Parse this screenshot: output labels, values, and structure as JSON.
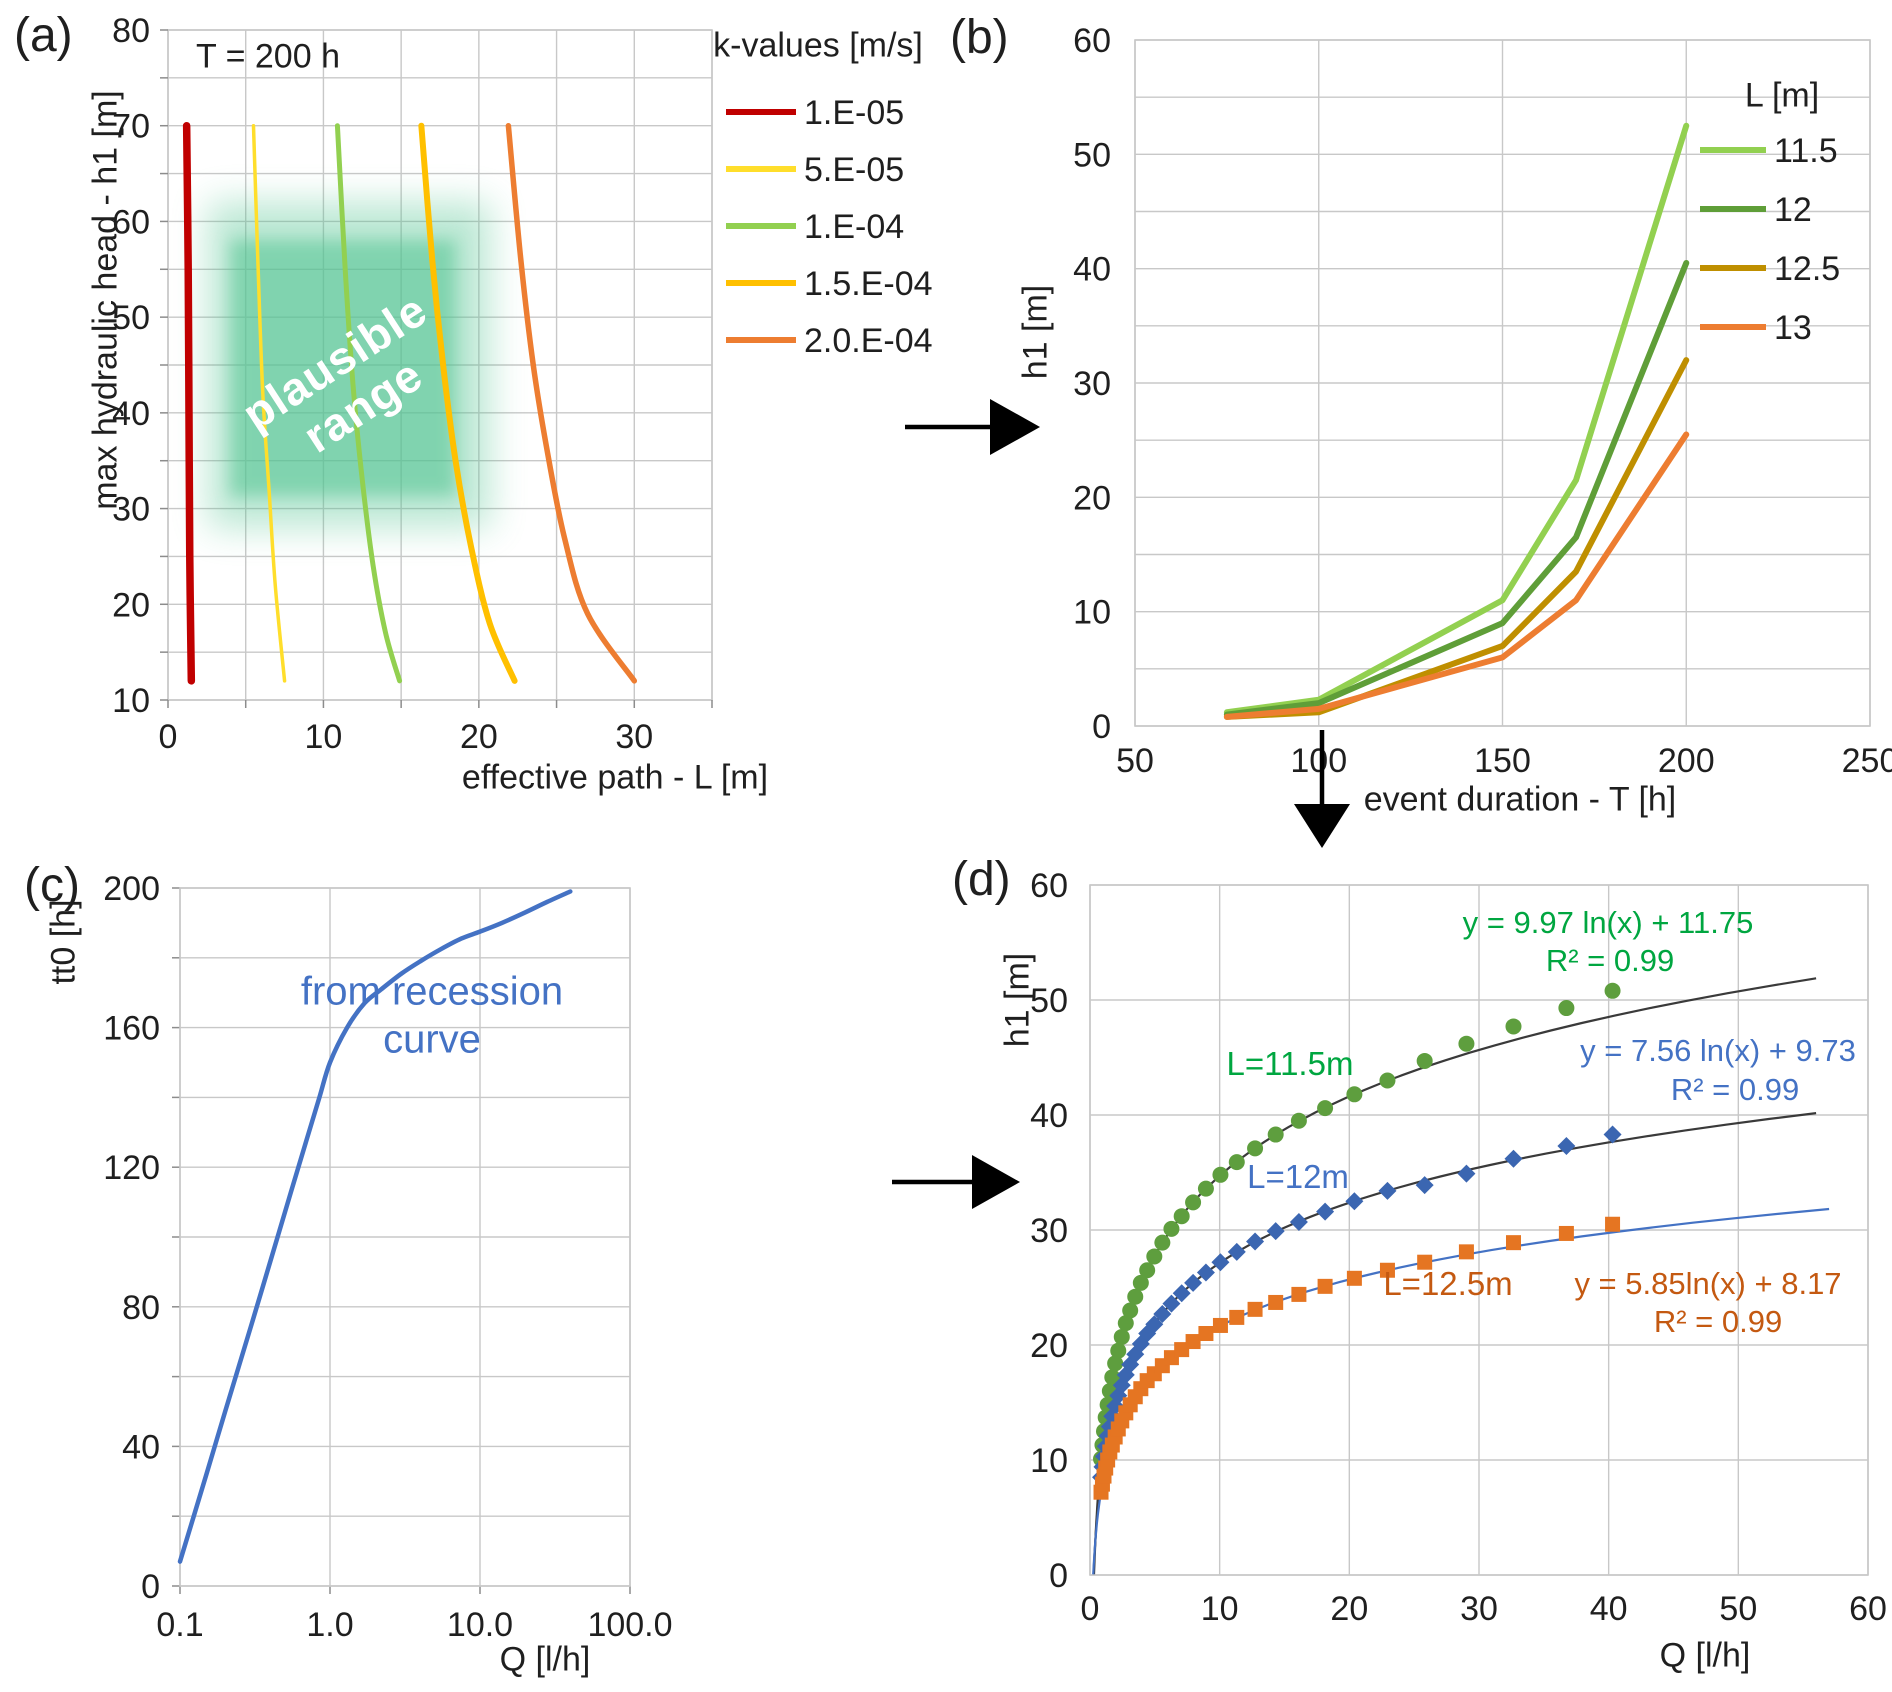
{
  "page": {
    "background": "#FFFFFF"
  },
  "arrows": [
    {
      "name": "a-to-b",
      "direction": "right"
    },
    {
      "name": "b-to-d",
      "direction": "down"
    },
    {
      "name": "c-to-d",
      "direction": "right"
    }
  ],
  "chart_data": [
    {
      "id": "a",
      "type": "line",
      "panel_label": "(a)",
      "inner_annotation": "T = 200 h",
      "x_axis": {
        "label": "effective path - L [m]",
        "min": 0,
        "max": 35,
        "grid_step": 5,
        "tick_values": [
          0,
          10,
          20,
          30
        ]
      },
      "y_axis": {
        "label": "max hydraulic head - h1 [m]",
        "min": 10,
        "max": 80,
        "grid_step": 5,
        "tick_values": [
          10,
          20,
          30,
          40,
          50,
          60,
          70,
          80
        ]
      },
      "legend": {
        "title": "k-values [m/s]",
        "position": "right",
        "items": [
          {
            "label": "1.E-05",
            "color": "#C00000"
          },
          {
            "label": "5.E-05",
            "color": "#FFDE2B"
          },
          {
            "label": "1.E-04",
            "color": "#92D050"
          },
          {
            "label": "1.5.E-04",
            "color": "#FFC000"
          },
          {
            "label": "2.0.E-04",
            "color": "#ED7D31"
          }
        ]
      },
      "series": [
        {
          "name": "1.E-05",
          "color": "#C00000",
          "width": 7.5,
          "points": [
            [
              1.2,
              70
            ],
            [
              1.3,
              55
            ],
            [
              1.35,
              40
            ],
            [
              1.4,
              25
            ],
            [
              1.5,
              12
            ]
          ]
        },
        {
          "name": "5.E-05",
          "color": "#FFDE2B",
          "width": 3.5,
          "points": [
            [
              5.5,
              70
            ],
            [
              5.8,
              55
            ],
            [
              6.1,
              42
            ],
            [
              6.5,
              32
            ],
            [
              6.9,
              22
            ],
            [
              7.5,
              12
            ]
          ]
        },
        {
          "name": "1.E-04",
          "color": "#92D050",
          "width": 5,
          "points": [
            [
              10.9,
              70
            ],
            [
              11.4,
              55
            ],
            [
              11.9,
              43
            ],
            [
              12.5,
              33
            ],
            [
              13.2,
              24
            ],
            [
              14.0,
              17
            ],
            [
              14.9,
              12
            ]
          ]
        },
        {
          "name": "1.5.E-04",
          "color": "#FFC000",
          "width": 6,
          "points": [
            [
              16.3,
              70
            ],
            [
              17.0,
              56
            ],
            [
              17.7,
              45
            ],
            [
              18.5,
              35
            ],
            [
              19.5,
              26
            ],
            [
              20.7,
              18
            ],
            [
              22.3,
              12
            ]
          ]
        },
        {
          "name": "2.0.E-04",
          "color": "#ED7D31",
          "width": 5.5,
          "points": [
            [
              21.9,
              70
            ],
            [
              22.7,
              56
            ],
            [
              23.5,
              45
            ],
            [
              24.4,
              36
            ],
            [
              25.5,
              27
            ],
            [
              27.0,
              19
            ],
            [
              30.0,
              12
            ]
          ]
        }
      ],
      "highlight": {
        "label_line1": "plausible",
        "label_line2": "range",
        "x_range": [
          2.6,
          20.7
        ],
        "y_range": [
          28,
          62
        ],
        "color": "#52C492",
        "text_color": "#FFFFFF",
        "rotation_deg": -33
      }
    },
    {
      "id": "b",
      "type": "line",
      "panel_label": "(b)",
      "x_axis": {
        "label": "event duration - T [h]",
        "min": 50,
        "max": 250,
        "grid_step": 50,
        "tick_values": [
          50,
          100,
          150,
          200,
          250
        ]
      },
      "y_axis": {
        "label": "h1 [m]",
        "min": 0,
        "max": 60,
        "grid_step": 5,
        "tick_values": [
          0,
          10,
          20,
          30,
          40,
          50,
          60
        ]
      },
      "legend": {
        "title": "L [m]",
        "position": "right",
        "items": [
          {
            "label": "11.5",
            "color": "#92D050"
          },
          {
            "label": "12",
            "color": "#5F9E38"
          },
          {
            "label": "12.5",
            "color": "#BF8F00"
          },
          {
            "label": "13",
            "color": "#ED7D31"
          }
        ]
      },
      "series": [
        {
          "name": "11.5",
          "color": "#92D050",
          "width": 6,
          "points": [
            [
              75,
              1.2
            ],
            [
              100,
              2.3
            ],
            [
              150,
              11
            ],
            [
              170,
              21.5
            ],
            [
              200,
              52.5
            ]
          ]
        },
        {
          "name": "12",
          "color": "#5F9E38",
          "width": 6,
          "points": [
            [
              75,
              1.0
            ],
            [
              100,
              2.0
            ],
            [
              150,
              9
            ],
            [
              170,
              16.5
            ],
            [
              200,
              40.5
            ]
          ]
        },
        {
          "name": "12.5",
          "color": "#BF8F00",
          "width": 6,
          "points": [
            [
              75,
              0.8
            ],
            [
              100,
              1.2
            ],
            [
              150,
              7
            ],
            [
              170,
              13.5
            ],
            [
              200,
              32
            ]
          ]
        },
        {
          "name": "13",
          "color": "#ED7D31",
          "width": 6,
          "points": [
            [
              75,
              0.8
            ],
            [
              100,
              1.5
            ],
            [
              150,
              6
            ],
            [
              170,
              11
            ],
            [
              200,
              25.5
            ]
          ]
        }
      ]
    },
    {
      "id": "c",
      "type": "line",
      "panel_label": "(c)",
      "x_axis": {
        "label": "Q [l/h]",
        "scale": "log",
        "min": 0.1,
        "max": 100,
        "tick_values": [
          0.1,
          1,
          10,
          100
        ],
        "tick_labels": [
          "0.1",
          "1.0",
          "10.0",
          "100.0"
        ]
      },
      "y_axis": {
        "label": "tt0 [h]",
        "min": 0,
        "max": 200,
        "grid_step": 20,
        "tick_values": [
          0,
          40,
          80,
          120,
          160,
          200
        ]
      },
      "annotation": {
        "line1": "from recession",
        "line2": "curve",
        "color": "#4472C4"
      },
      "series": [
        {
          "name": "recession curve",
          "color": "#4472C4",
          "width": 4.5,
          "points": [
            [
              0.1,
              7
            ],
            [
              0.15,
              32
            ],
            [
              0.2,
              50
            ],
            [
              0.3,
              75
            ],
            [
              0.4,
              93
            ],
            [
              0.55,
              113
            ],
            [
              0.7,
              128
            ],
            [
              0.85,
              140
            ],
            [
              1.0,
              150
            ],
            [
              1.3,
              160
            ],
            [
              1.7,
              167
            ],
            [
              2.2,
              171
            ],
            [
              3,
              175.5
            ],
            [
              4,
              179
            ],
            [
              5.5,
              182.5
            ],
            [
              7.5,
              185.5
            ],
            [
              10,
              187.5
            ],
            [
              14,
              190
            ],
            [
              20,
              193
            ],
            [
              28,
              196
            ],
            [
              40,
              199
            ]
          ]
        }
      ]
    },
    {
      "id": "d",
      "type": "scatter",
      "panel_label": "(d)",
      "x_axis": {
        "label": "Q [l/h]",
        "min": 0,
        "max": 60,
        "grid_step": 10,
        "tick_values": [
          0,
          10,
          20,
          30,
          40,
          50,
          60
        ]
      },
      "y_axis": {
        "label": "h1 [m]",
        "min": 0,
        "max": 60,
        "grid_step": 10,
        "tick_values": [
          0,
          10,
          20,
          30,
          40,
          50,
          60
        ]
      },
      "series": [
        {
          "name": "L=11.5m",
          "marker": "circle",
          "color": "#5E9E3E",
          "label_color": "#00A640",
          "equation": "y = 9.97 ln(x) + 11.75",
          "r2": "R² = 0.99",
          "trend": {
            "a": 9.97,
            "b": 11.75,
            "x_start": 0.31,
            "x_end": 56,
            "color": "#3A3A3A"
          },
          "x": [
            0.85,
            0.96,
            1.08,
            1.21,
            1.36,
            1.53,
            1.72,
            1.94,
            2.18,
            2.45,
            2.76,
            3.1,
            3.49,
            3.92,
            4.41,
            4.96,
            5.58,
            6.28,
            7.07,
            7.95,
            8.94,
            10.06,
            11.32,
            12.73,
            14.32,
            16.11,
            18.13,
            20.39,
            22.94,
            25.81,
            29.03,
            32.66,
            36.74,
            40.3
          ],
          "y": [
            10.1,
            11.3,
            12.5,
            13.7,
            14.8,
            16.0,
            17.2,
            18.4,
            19.5,
            20.7,
            21.9,
            23.0,
            24.2,
            25.4,
            26.5,
            27.7,
            28.9,
            30.1,
            31.2,
            32.4,
            33.6,
            34.8,
            35.9,
            37.1,
            38.3,
            39.5,
            40.6,
            41.8,
            43.0,
            44.7,
            46.2,
            47.7,
            49.3,
            50.8
          ]
        },
        {
          "name": "L=12m",
          "marker": "diamond",
          "color": "#3B66B1",
          "label_color": "#4472C4",
          "equation": "y = 7.56 ln(x) + 9.73",
          "r2": "R² = 0.99",
          "trend": {
            "a": 7.56,
            "b": 9.73,
            "x_start": 0.28,
            "x_end": 56,
            "color": "#3A3A3A"
          },
          "x": [
            0.85,
            0.96,
            1.08,
            1.21,
            1.36,
            1.53,
            1.72,
            1.94,
            2.18,
            2.45,
            2.76,
            3.1,
            3.49,
            3.92,
            4.41,
            4.96,
            5.58,
            6.28,
            7.07,
            7.95,
            8.94,
            10.06,
            11.32,
            12.73,
            14.32,
            16.11,
            18.13,
            20.39,
            22.94,
            25.81,
            29.03,
            32.66,
            36.74,
            40.3
          ],
          "y": [
            8.5,
            9.4,
            10.3,
            11.2,
            12.1,
            12.9,
            13.8,
            14.7,
            15.6,
            16.5,
            17.4,
            18.3,
            19.2,
            20.1,
            21.0,
            21.8,
            22.7,
            23.6,
            24.5,
            25.4,
            26.3,
            27.2,
            28.1,
            29.0,
            29.9,
            30.7,
            31.6,
            32.5,
            33.4,
            33.9,
            34.9,
            36.2,
            37.3,
            38.3
          ]
        },
        {
          "name": "L=12.5m",
          "marker": "square",
          "color": "#E57522",
          "label_color": "#C45911",
          "equation": "y = 5.85ln(x) + 8.17",
          "r2": "R² = 0.99",
          "trend": {
            "a": 5.85,
            "b": 8.17,
            "x_start": 0.25,
            "x_end": 57,
            "color": "#4472C4"
          },
          "x": [
            0.85,
            0.96,
            1.08,
            1.21,
            1.36,
            1.53,
            1.72,
            1.94,
            2.18,
            2.45,
            2.76,
            3.1,
            3.49,
            3.92,
            4.41,
            4.96,
            5.58,
            6.28,
            7.07,
            7.95,
            8.94,
            10.06,
            11.32,
            12.73,
            14.32,
            16.11,
            18.13,
            20.39,
            22.94,
            25.81,
            29.03,
            32.66,
            36.74,
            40.3
          ],
          "y": [
            7.2,
            7.9,
            8.6,
            9.3,
            10.0,
            10.7,
            11.3,
            12.0,
            12.7,
            13.4,
            14.1,
            14.8,
            15.5,
            16.2,
            16.9,
            17.5,
            18.2,
            18.9,
            19.6,
            20.3,
            21.0,
            21.7,
            22.4,
            23.1,
            23.7,
            24.4,
            25.1,
            25.8,
            26.5,
            27.2,
            28.1,
            28.9,
            29.7,
            30.5
          ]
        }
      ]
    }
  ]
}
